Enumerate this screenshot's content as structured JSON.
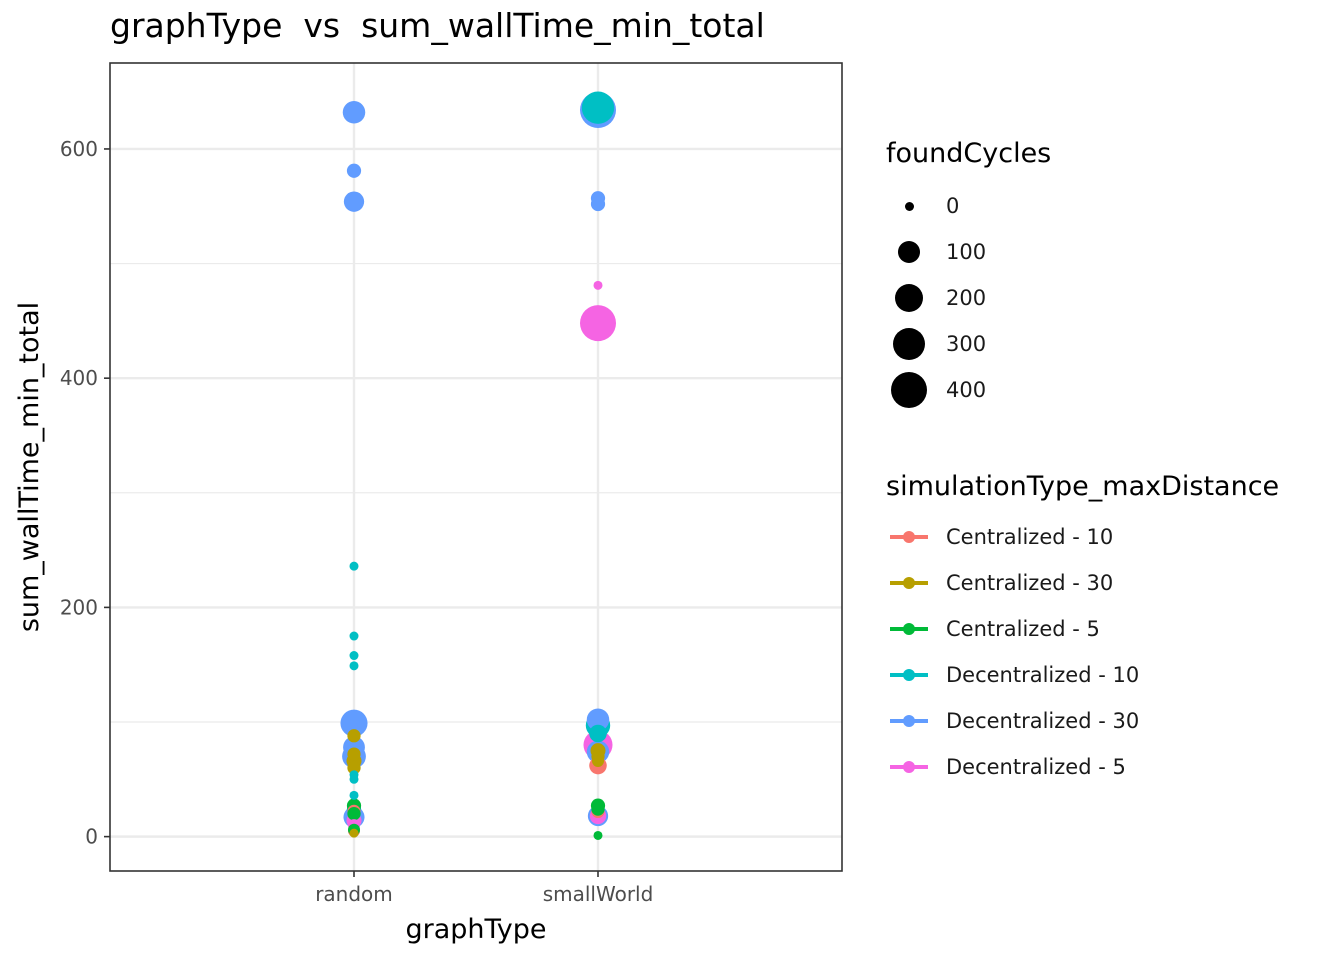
{
  "title": "graphType  vs  sum_wallTime_min_total",
  "colors": {
    "Centralized - 10": "#F8766D",
    "Centralized - 30": "#B79F00",
    "Centralized - 5": "#00BA38",
    "Decentralized - 10": "#00BFC4",
    "Decentralized - 30": "#619CFF",
    "Decentralized - 5": "#F564E3"
  },
  "legend_size": {
    "title": "foundCycles",
    "entries": [
      {
        "label": "0",
        "value": 0
      },
      {
        "label": "100",
        "value": 100
      },
      {
        "label": "200",
        "value": 200
      },
      {
        "label": "300",
        "value": 300
      },
      {
        "label": "400",
        "value": 400
      }
    ]
  },
  "legend_color": {
    "title": "simulationType_maxDistance",
    "entries": [
      {
        "label": "Centralized - 10"
      },
      {
        "label": "Centralized - 30"
      },
      {
        "label": "Centralized - 5"
      },
      {
        "label": "Decentralized - 10"
      },
      {
        "label": "Decentralized - 30"
      },
      {
        "label": "Decentralized - 5"
      }
    ]
  },
  "chart_data": {
    "type": "scatter",
    "title": "graphType  vs  sum_wallTime_min_total",
    "xlabel": "graphType",
    "ylabel": "sum_wallTime_min_total",
    "categories": [
      "random",
      "smallWorld"
    ],
    "ylim": [
      -30,
      675
    ],
    "yticks": [
      0,
      200,
      400,
      600
    ],
    "grid": true,
    "legend_position": "right",
    "series": [
      {
        "name": "Decentralized - 10",
        "points": [
          {
            "x": "random",
            "y": 236,
            "size": 0
          },
          {
            "x": "random",
            "y": 175,
            "size": 0
          },
          {
            "x": "random",
            "y": 158,
            "size": 0
          },
          {
            "x": "random",
            "y": 149,
            "size": 0
          },
          {
            "x": "random",
            "y": 54,
            "size": 0
          },
          {
            "x": "random",
            "y": 50,
            "size": 0
          },
          {
            "x": "random",
            "y": 36,
            "size": 0
          },
          {
            "x": "random",
            "y": 24,
            "size": 15
          },
          {
            "x": "smallWorld",
            "y": 636,
            "size": 300
          },
          {
            "x": "smallWorld",
            "y": 97,
            "size": 130
          },
          {
            "x": "smallWorld",
            "y": 90,
            "size": 40
          }
        ]
      },
      {
        "name": "Decentralized - 30",
        "points": [
          {
            "x": "random",
            "y": 632,
            "size": 100
          },
          {
            "x": "random",
            "y": 581,
            "size": 15
          },
          {
            "x": "random",
            "y": 554,
            "size": 70
          },
          {
            "x": "random",
            "y": 99,
            "size": 180
          },
          {
            "x": "random",
            "y": 78,
            "size": 90
          },
          {
            "x": "random",
            "y": 70,
            "size": 120
          },
          {
            "x": "random",
            "y": 17,
            "size": 80
          },
          {
            "x": "smallWorld",
            "y": 634,
            "size": 400
          },
          {
            "x": "smallWorld",
            "y": 557,
            "size": 15
          },
          {
            "x": "smallWorld",
            "y": 552,
            "size": 15
          },
          {
            "x": "smallWorld",
            "y": 102,
            "size": 100
          },
          {
            "x": "smallWorld",
            "y": 74,
            "size": 100
          },
          {
            "x": "smallWorld",
            "y": 18,
            "size": 70
          }
        ]
      },
      {
        "name": "Decentralized - 5",
        "points": [
          {
            "x": "random",
            "y": 14,
            "size": 20
          },
          {
            "x": "random",
            "y": 10,
            "size": 5
          },
          {
            "x": "smallWorld",
            "y": 481,
            "size": 0
          },
          {
            "x": "smallWorld",
            "y": 448,
            "size": 400
          },
          {
            "x": "smallWorld",
            "y": 80,
            "size": 220
          },
          {
            "x": "smallWorld",
            "y": 18,
            "size": 30
          }
        ]
      },
      {
        "name": "Centralized - 10",
        "points": [
          {
            "x": "random",
            "y": 22,
            "size": 10
          },
          {
            "x": "random",
            "y": 5,
            "size": 5
          },
          {
            "x": "smallWorld",
            "y": 62,
            "size": 40
          },
          {
            "x": "smallWorld",
            "y": 22,
            "size": 10
          }
        ]
      },
      {
        "name": "Centralized - 30",
        "points": [
          {
            "x": "random",
            "y": 88,
            "size": 10
          },
          {
            "x": "random",
            "y": 72,
            "size": 10
          },
          {
            "x": "random",
            "y": 66,
            "size": 20
          },
          {
            "x": "random",
            "y": 60,
            "size": 10
          },
          {
            "x": "random",
            "y": 3,
            "size": 0
          },
          {
            "x": "smallWorld",
            "y": 75,
            "size": 20
          },
          {
            "x": "smallWorld",
            "y": 70,
            "size": 10
          },
          {
            "x": "smallWorld",
            "y": 66,
            "size": 5
          }
        ]
      },
      {
        "name": "Centralized - 5",
        "points": [
          {
            "x": "random",
            "y": 27,
            "size": 15
          },
          {
            "x": "random",
            "y": 20,
            "size": 10
          },
          {
            "x": "random",
            "y": 6,
            "size": 5
          },
          {
            "x": "smallWorld",
            "y": 27,
            "size": 15
          },
          {
            "x": "smallWorld",
            "y": 24,
            "size": 10
          },
          {
            "x": "smallWorld",
            "y": 1,
            "size": 0
          }
        ]
      }
    ]
  }
}
